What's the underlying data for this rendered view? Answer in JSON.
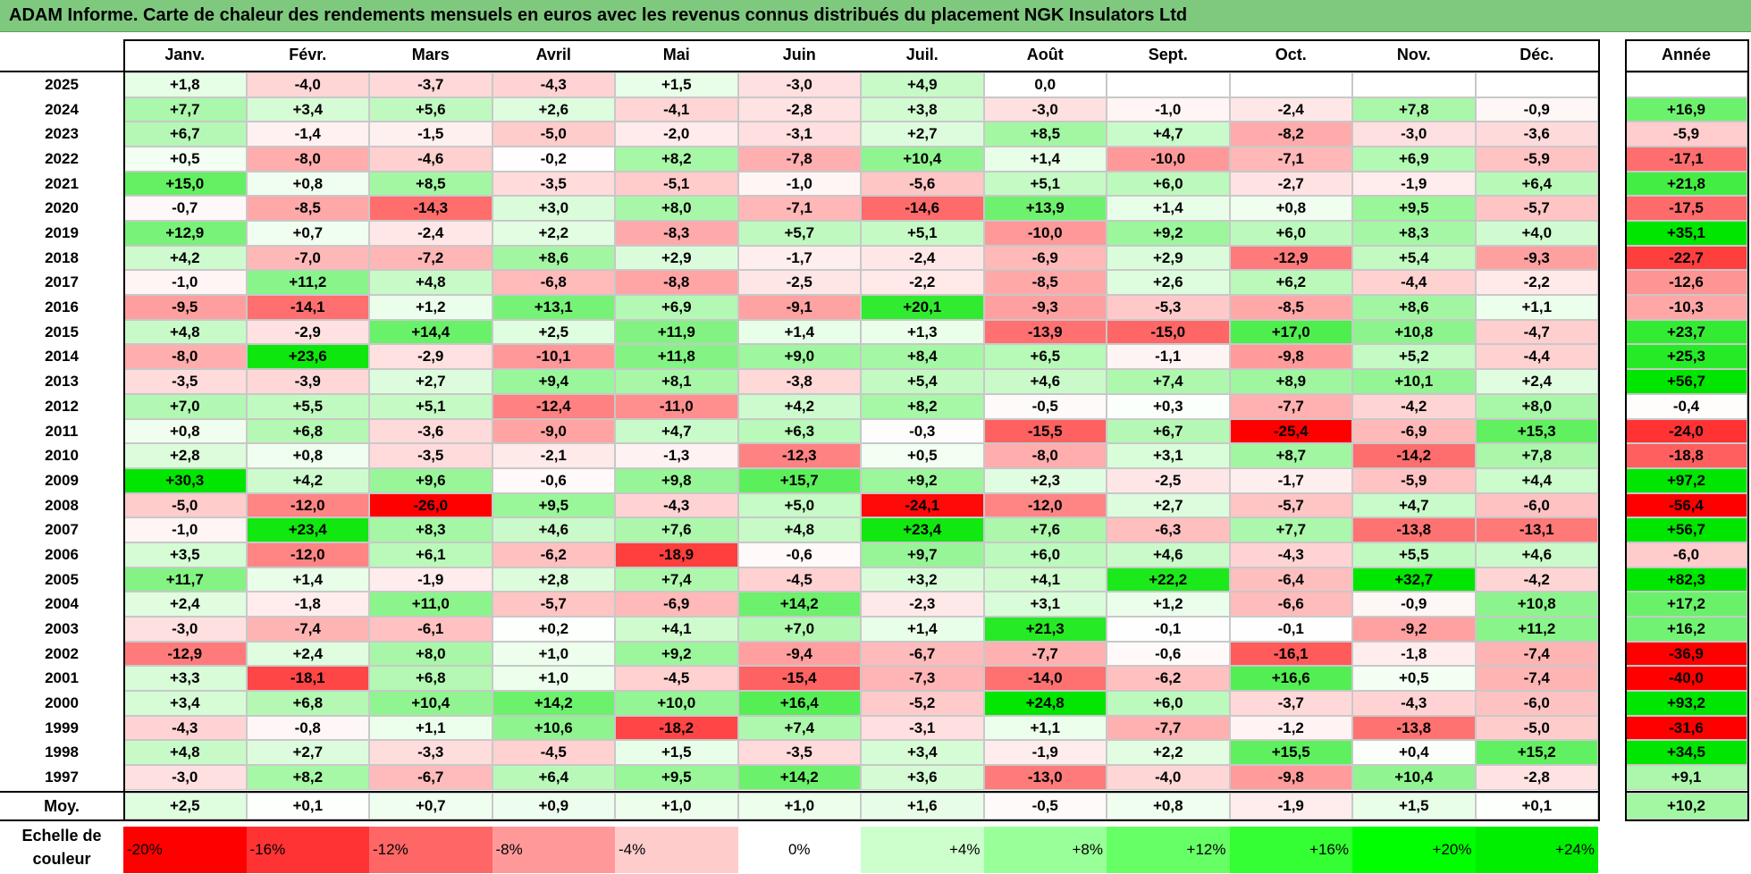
{
  "title": "ADAM Informe. Carte de chaleur des rendements mensuels en euros avec les revenus connus distribués du placement NGK Insulators Ltd",
  "scale_label_line1": "Echelle de",
  "scale_label_line2": "couleur",
  "avg_label": "Moy.",
  "chart_data": {
    "type": "heatmap",
    "title": "ADAM Informe. Carte de chaleur des rendements mensuels en euros avec les revenus connus distribués du placement NGK Insulators Ltd",
    "columns": [
      "Janv.",
      "Févr.",
      "Mars",
      "Avril",
      "Mai",
      "Juin",
      "Juil.",
      "Août",
      "Sept.",
      "Oct.",
      "Nov.",
      "Déc."
    ],
    "annual_label": "Année",
    "rows": [
      {
        "year": "2025",
        "values": [
          "+1,8",
          "-4,0",
          "-3,7",
          "-4,3",
          "+1,5",
          "-3,0",
          "+4,9",
          "0,0",
          "",
          "",
          "",
          ""
        ],
        "annual": ""
      },
      {
        "year": "2024",
        "values": [
          "+7,7",
          "+3,4",
          "+5,6",
          "+2,6",
          "-4,1",
          "-2,8",
          "+3,8",
          "-3,0",
          "-1,0",
          "-2,4",
          "+7,8",
          "-0,9"
        ],
        "annual": "+16,9"
      },
      {
        "year": "2023",
        "values": [
          "+6,7",
          "-1,4",
          "-1,5",
          "-5,0",
          "-2,0",
          "-3,1",
          "+2,7",
          "+8,5",
          "+4,7",
          "-8,2",
          "-3,0",
          "-3,6"
        ],
        "annual": "-5,9"
      },
      {
        "year": "2022",
        "values": [
          "+0,5",
          "-8,0",
          "-4,6",
          "-0,2",
          "+8,2",
          "-7,8",
          "+10,4",
          "+1,4",
          "-10,0",
          "-7,1",
          "+6,9",
          "-5,9"
        ],
        "annual": "-17,1"
      },
      {
        "year": "2021",
        "values": [
          "+15,0",
          "+0,8",
          "+8,5",
          "-3,5",
          "-5,1",
          "-1,0",
          "-5,6",
          "+5,1",
          "+6,0",
          "-2,7",
          "-1,9",
          "+6,4"
        ],
        "annual": "+21,8"
      },
      {
        "year": "2020",
        "values": [
          "-0,7",
          "-8,5",
          "-14,3",
          "+3,0",
          "+8,0",
          "-7,1",
          "-14,6",
          "+13,9",
          "+1,4",
          "+0,8",
          "+9,5",
          "-5,7"
        ],
        "annual": "-17,5"
      },
      {
        "year": "2019",
        "values": [
          "+12,9",
          "+0,7",
          "-2,4",
          "+2,2",
          "-8,3",
          "+5,7",
          "+5,1",
          "-10,0",
          "+9,2",
          "+6,0",
          "+8,3",
          "+4,0"
        ],
        "annual": "+35,1"
      },
      {
        "year": "2018",
        "values": [
          "+4,2",
          "-7,0",
          "-7,2",
          "+8,6",
          "+2,9",
          "-1,7",
          "-2,4",
          "-6,9",
          "+2,9",
          "-12,9",
          "+5,4",
          "-9,3"
        ],
        "annual": "-22,7"
      },
      {
        "year": "2017",
        "values": [
          "-1,0",
          "+11,2",
          "+4,8",
          "-6,8",
          "-8,8",
          "-2,5",
          "-2,2",
          "-8,5",
          "+2,6",
          "+6,2",
          "-4,4",
          "-2,2"
        ],
        "annual": "-12,6"
      },
      {
        "year": "2016",
        "values": [
          "-9,5",
          "-14,1",
          "+1,2",
          "+13,1",
          "+6,9",
          "-9,1",
          "+20,1",
          "-9,3",
          "-5,3",
          "-8,5",
          "+8,6",
          "+1,1"
        ],
        "annual": "-10,3"
      },
      {
        "year": "2015",
        "values": [
          "+4,8",
          "-2,9",
          "+14,4",
          "+2,5",
          "+11,9",
          "+1,4",
          "+1,3",
          "-13,9",
          "-15,0",
          "+17,0",
          "+10,8",
          "-4,7"
        ],
        "annual": "+23,7"
      },
      {
        "year": "2014",
        "values": [
          "-8,0",
          "+23,6",
          "-2,9",
          "-10,1",
          "+11,8",
          "+9,0",
          "+8,4",
          "+6,5",
          "-1,1",
          "-9,8",
          "+5,2",
          "-4,4"
        ],
        "annual": "+25,3"
      },
      {
        "year": "2013",
        "values": [
          "-3,5",
          "-3,9",
          "+2,7",
          "+9,4",
          "+8,1",
          "-3,8",
          "+5,4",
          "+4,6",
          "+7,4",
          "+8,9",
          "+10,1",
          "+2,4"
        ],
        "annual": "+56,7"
      },
      {
        "year": "2012",
        "values": [
          "+7,0",
          "+5,5",
          "+5,1",
          "-12,4",
          "-11,0",
          "+4,2",
          "+8,2",
          "-0,5",
          "+0,3",
          "-7,7",
          "-4,2",
          "+8,0"
        ],
        "annual": "-0,4"
      },
      {
        "year": "2011",
        "values": [
          "+0,8",
          "+6,8",
          "-3,6",
          "-9,0",
          "+4,7",
          "+6,3",
          "-0,3",
          "-15,5",
          "+6,7",
          "-25,4",
          "-6,9",
          "+15,3"
        ],
        "annual": "-24,0"
      },
      {
        "year": "2010",
        "values": [
          "+2,8",
          "+0,8",
          "-3,5",
          "-2,1",
          "-1,3",
          "-12,3",
          "+0,5",
          "-8,0",
          "+3,1",
          "+8,7",
          "-14,2",
          "+7,8"
        ],
        "annual": "-18,8"
      },
      {
        "year": "2009",
        "values": [
          "+30,3",
          "+4,2",
          "+9,6",
          "-0,6",
          "+9,8",
          "+15,7",
          "+9,2",
          "+2,3",
          "-2,5",
          "-1,7",
          "-5,9",
          "+4,4"
        ],
        "annual": "+97,2"
      },
      {
        "year": "2008",
        "values": [
          "-5,0",
          "-12,0",
          "-26,0",
          "+9,5",
          "-4,3",
          "+5,0",
          "-24,1",
          "-12,0",
          "+2,7",
          "-5,7",
          "+4,7",
          "-6,0"
        ],
        "annual": "-56,4"
      },
      {
        "year": "2007",
        "values": [
          "-1,0",
          "+23,4",
          "+8,3",
          "+4,6",
          "+7,6",
          "+4,8",
          "+23,4",
          "+7,6",
          "-6,3",
          "+7,7",
          "-13,8",
          "-13,1"
        ],
        "annual": "+56,7"
      },
      {
        "year": "2006",
        "values": [
          "+3,5",
          "-12,0",
          "+6,1",
          "-6,2",
          "-18,9",
          "-0,6",
          "+9,7",
          "+6,0",
          "+4,6",
          "-4,3",
          "+5,5",
          "+4,6"
        ],
        "annual": "-6,0"
      },
      {
        "year": "2005",
        "values": [
          "+11,7",
          "+1,4",
          "-1,9",
          "+2,8",
          "+7,4",
          "-4,5",
          "+3,2",
          "+4,1",
          "+22,2",
          "-6,4",
          "+32,7",
          "-4,2"
        ],
        "annual": "+82,3"
      },
      {
        "year": "2004",
        "values": [
          "+2,4",
          "-1,8",
          "+11,0",
          "-5,7",
          "-6,9",
          "+14,2",
          "-2,3",
          "+3,1",
          "+1,2",
          "-6,6",
          "-0,9",
          "+10,8"
        ],
        "annual": "+17,2"
      },
      {
        "year": "2003",
        "values": [
          "-3,0",
          "-7,4",
          "-6,1",
          "+0,2",
          "+4,1",
          "+7,0",
          "+1,4",
          "+21,3",
          "-0,1",
          "-0,1",
          "-9,2",
          "+11,2"
        ],
        "annual": "+16,2"
      },
      {
        "year": "2002",
        "values": [
          "-12,9",
          "+2,4",
          "+8,0",
          "+1,0",
          "+9,2",
          "-9,4",
          "-6,7",
          "-7,7",
          "-0,6",
          "-16,1",
          "-1,8",
          "-7,4"
        ],
        "annual": "-36,9"
      },
      {
        "year": "2001",
        "values": [
          "+3,3",
          "-18,1",
          "+6,8",
          "+1,0",
          "-4,5",
          "-15,4",
          "-7,3",
          "-14,0",
          "-6,2",
          "+16,6",
          "+0,5",
          "-7,4"
        ],
        "annual": "-40,0"
      },
      {
        "year": "2000",
        "values": [
          "+3,4",
          "+6,8",
          "+10,4",
          "+14,2",
          "+10,0",
          "+16,4",
          "-5,2",
          "+24,8",
          "+6,0",
          "-3,7",
          "-4,3",
          "-6,0"
        ],
        "annual": "+93,2"
      },
      {
        "year": "1999",
        "values": [
          "-4,3",
          "-0,8",
          "+1,1",
          "+10,6",
          "-18,2",
          "+7,4",
          "-3,1",
          "+1,1",
          "-7,7",
          "-1,2",
          "-13,8",
          "-5,0"
        ],
        "annual": "-31,6"
      },
      {
        "year": "1998",
        "values": [
          "+4,8",
          "+2,7",
          "-3,3",
          "-4,5",
          "+1,5",
          "-3,5",
          "+3,4",
          "-1,9",
          "+2,2",
          "+15,5",
          "+0,4",
          "+15,2"
        ],
        "annual": "+34,5"
      },
      {
        "year": "1997",
        "values": [
          "-3,0",
          "+8,2",
          "-6,7",
          "+6,4",
          "+9,5",
          "+14,2",
          "+3,6",
          "-13,0",
          "-4,0",
          "-9,8",
          "+10,4",
          "-2,8"
        ],
        "annual": "+9,1"
      }
    ],
    "averages": {
      "values": [
        "+2,5",
        "+0,1",
        "+0,7",
        "+0,9",
        "+1,0",
        "+1,0",
        "+1,6",
        "-0,5",
        "+0,8",
        "-1,9",
        "+1,5",
        "+0,1"
      ],
      "annual": "+10,2"
    },
    "color_scale": [
      {
        "label": "-20%",
        "value": -20,
        "color": "#ff0000",
        "align": "left"
      },
      {
        "label": "-16%",
        "value": -16,
        "color": "#ff3333",
        "align": "left"
      },
      {
        "label": "-12%",
        "value": -12,
        "color": "#ff6666",
        "align": "left"
      },
      {
        "label": "-8%",
        "value": -8,
        "color": "#ff9999",
        "align": "left"
      },
      {
        "label": "-4%",
        "value": -4,
        "color": "#ffcccc",
        "align": "left"
      },
      {
        "label": "0%",
        "value": 0,
        "color": "#ffffff",
        "align": "center"
      },
      {
        "label": "+4%",
        "value": 4,
        "color": "#ccffcc",
        "align": "right"
      },
      {
        "label": "+8%",
        "value": 8,
        "color": "#99ff99",
        "align": "right"
      },
      {
        "label": "+12%",
        "value": 12,
        "color": "#66ff66",
        "align": "right"
      },
      {
        "label": "+16%",
        "value": 16,
        "color": "#33ff33",
        "align": "right"
      },
      {
        "label": "+20%",
        "value": 20,
        "color": "#00ff00",
        "align": "right"
      },
      {
        "label": "+24%",
        "value": 24,
        "color": "#00ee00",
        "align": "right"
      }
    ]
  }
}
